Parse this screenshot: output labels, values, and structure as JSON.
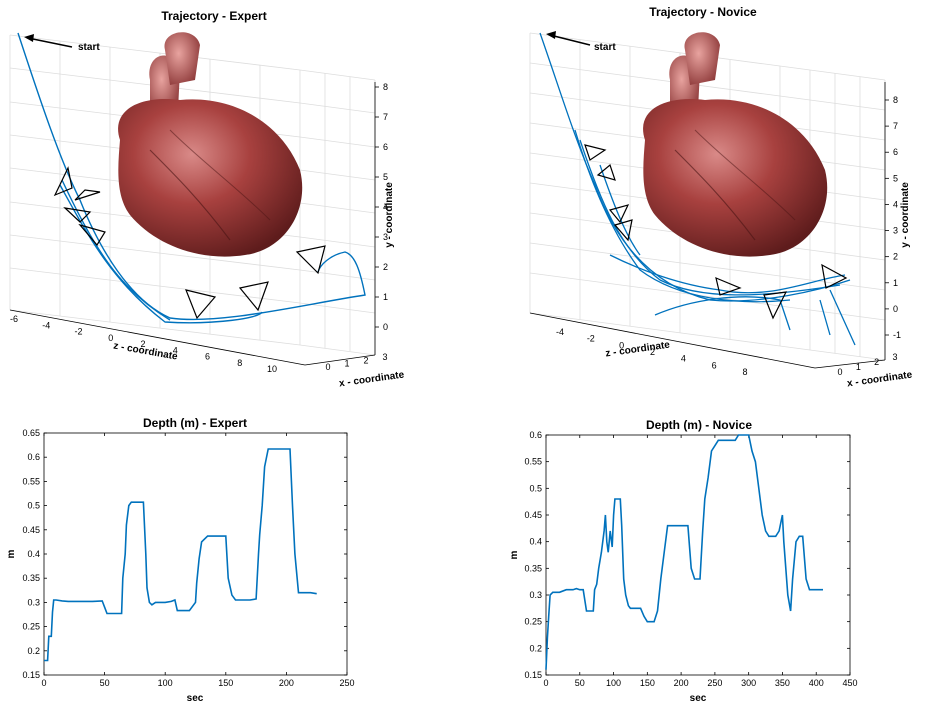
{
  "chart_data": [
    {
      "type": "line3d",
      "title": "Trajectory - Expert",
      "xlabel": "x - coordinate",
      "ylabel": "y - coordinate",
      "zlabel": "z - coordinate",
      "annotation": "start",
      "xticks": [
        "0",
        "1",
        "2",
        "3"
      ],
      "yticks": [
        "0",
        "1",
        "2",
        "3",
        "4",
        "5",
        "6",
        "7",
        "8"
      ],
      "zticks": [
        "-6",
        "-4",
        "-2",
        "0",
        "2",
        "4",
        "6",
        "8",
        "10"
      ],
      "line_color": "#0072BD"
    },
    {
      "type": "line3d",
      "title": "Trajectory - Novice",
      "xlabel": "x - coordinate",
      "ylabel": "y - coordinate",
      "zlabel": "z - coordinate",
      "annotation": "start",
      "xticks": [
        "0",
        "1",
        "2",
        "3"
      ],
      "yticks": [
        "-1",
        "0",
        "1",
        "2",
        "3",
        "4",
        "5",
        "6",
        "7",
        "8"
      ],
      "zticks": [
        "-4",
        "-2",
        "0",
        "2",
        "4",
        "6",
        "8"
      ],
      "line_color": "#0072BD"
    },
    {
      "type": "line",
      "title": "Depth (m) - Expert",
      "xlabel": "sec",
      "ylabel": "m",
      "xlim": [
        0,
        250
      ],
      "ylim": [
        0.15,
        0.65
      ],
      "xticks": [
        0,
        50,
        100,
        150,
        200,
        250
      ],
      "yticks": [
        0.15,
        0.2,
        0.25,
        0.3,
        0.35,
        0.4,
        0.45,
        0.5,
        0.55,
        0.6,
        0.65
      ],
      "line_color": "#0072BD",
      "x": [
        0,
        3,
        4,
        6,
        7,
        8,
        10,
        15,
        20,
        30,
        40,
        48,
        50,
        52,
        55,
        60,
        64,
        65,
        67,
        68,
        70,
        72,
        75,
        80,
        82,
        84,
        85,
        87,
        89,
        92,
        95,
        100,
        105,
        108,
        110,
        112,
        115,
        120,
        125,
        126,
        128,
        130,
        135,
        140,
        145,
        150,
        152,
        155,
        158,
        160,
        165,
        170,
        175,
        177,
        178,
        180,
        182,
        185,
        190,
        195,
        200,
        203,
        205,
        207,
        210,
        215,
        220,
        225
      ],
      "y": [
        0.18,
        0.18,
        0.23,
        0.23,
        0.28,
        0.305,
        0.305,
        0.303,
        0.302,
        0.302,
        0.302,
        0.303,
        0.29,
        0.277,
        0.277,
        0.277,
        0.277,
        0.35,
        0.4,
        0.46,
        0.5,
        0.507,
        0.507,
        0.507,
        0.507,
        0.4,
        0.33,
        0.3,
        0.295,
        0.3,
        0.3,
        0.3,
        0.302,
        0.305,
        0.283,
        0.283,
        0.283,
        0.283,
        0.3,
        0.34,
        0.39,
        0.425,
        0.437,
        0.437,
        0.437,
        0.437,
        0.35,
        0.315,
        0.305,
        0.305,
        0.305,
        0.305,
        0.307,
        0.4,
        0.44,
        0.5,
        0.58,
        0.617,
        0.617,
        0.617,
        0.617,
        0.617,
        0.5,
        0.4,
        0.32,
        0.32,
        0.32,
        0.318
      ]
    },
    {
      "type": "line",
      "title": "Depth (m) - Novice",
      "xlabel": "sec",
      "ylabel": "m",
      "xlim": [
        0,
        450
      ],
      "ylim": [
        0.15,
        0.6
      ],
      "xticks": [
        0,
        50,
        100,
        150,
        200,
        250,
        300,
        350,
        400,
        450
      ],
      "yticks": [
        0.15,
        0.2,
        0.25,
        0.3,
        0.35,
        0.4,
        0.45,
        0.5,
        0.55,
        0.6
      ],
      "line_color": "#0072BD",
      "x": [
        0,
        2,
        4,
        6,
        10,
        20,
        30,
        40,
        45,
        50,
        55,
        60,
        65,
        70,
        72,
        75,
        78,
        82,
        86,
        88,
        90,
        92,
        95,
        98,
        100,
        102,
        105,
        110,
        112,
        115,
        118,
        122,
        125,
        128,
        130,
        135,
        140,
        145,
        150,
        155,
        160,
        165,
        170,
        175,
        180,
        185,
        190,
        195,
        200,
        205,
        210,
        215,
        220,
        228,
        232,
        235,
        240,
        245,
        250,
        255,
        260,
        265,
        270,
        275,
        280,
        285,
        290,
        295,
        300,
        305,
        310,
        315,
        320,
        325,
        330,
        335,
        340,
        345,
        350,
        352,
        355,
        358,
        362,
        365,
        370,
        375,
        380,
        385,
        390,
        395,
        400,
        405,
        410
      ],
      "y": [
        0.16,
        0.22,
        0.26,
        0.3,
        0.305,
        0.305,
        0.31,
        0.31,
        0.312,
        0.31,
        0.31,
        0.27,
        0.27,
        0.27,
        0.31,
        0.32,
        0.35,
        0.38,
        0.42,
        0.45,
        0.4,
        0.38,
        0.42,
        0.39,
        0.45,
        0.48,
        0.48,
        0.48,
        0.43,
        0.33,
        0.3,
        0.28,
        0.275,
        0.275,
        0.275,
        0.275,
        0.275,
        0.26,
        0.25,
        0.25,
        0.25,
        0.27,
        0.33,
        0.38,
        0.43,
        0.43,
        0.43,
        0.43,
        0.43,
        0.43,
        0.43,
        0.35,
        0.33,
        0.33,
        0.42,
        0.48,
        0.52,
        0.57,
        0.58,
        0.59,
        0.59,
        0.59,
        0.59,
        0.59,
        0.59,
        0.6,
        0.6,
        0.6,
        0.6,
        0.57,
        0.55,
        0.5,
        0.45,
        0.42,
        0.41,
        0.41,
        0.41,
        0.42,
        0.45,
        0.4,
        0.35,
        0.3,
        0.27,
        0.33,
        0.4,
        0.41,
        0.41,
        0.33,
        0.31,
        0.31,
        0.31,
        0.31,
        0.31
      ]
    }
  ]
}
